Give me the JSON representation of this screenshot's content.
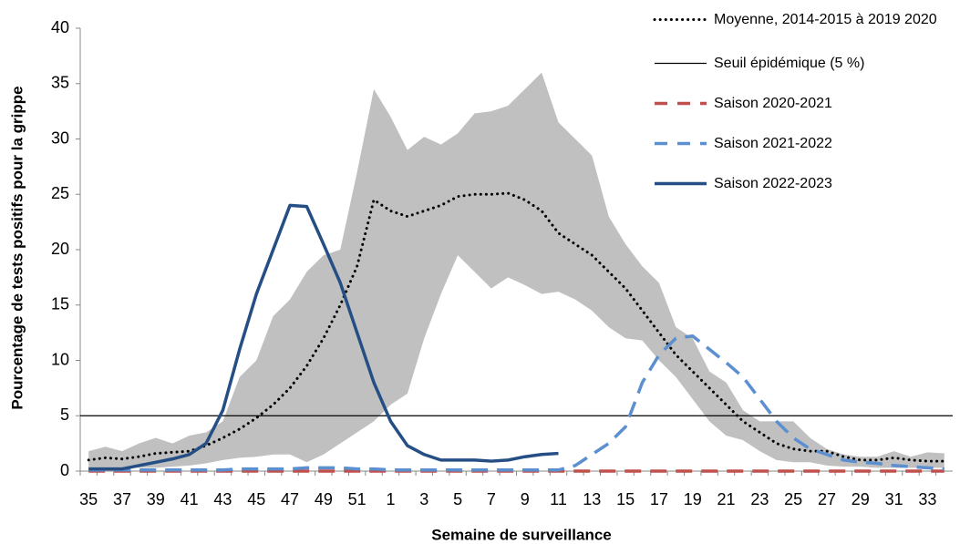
{
  "chart_data": {
    "type": "line",
    "x_label": "Semaine de surveillance",
    "y_label": "Pourcentage de tests positifs pour la grippe",
    "categories": [
      "35",
      null,
      "37",
      null,
      "39",
      null,
      "41",
      null,
      "43",
      null,
      "45",
      null,
      "47",
      null,
      "49",
      null,
      "51",
      null,
      "1",
      null,
      "3",
      null,
      "5",
      null,
      "7",
      null,
      "9",
      null,
      "11",
      null,
      "13",
      null,
      "15",
      null,
      "17",
      null,
      "19",
      null,
      "21",
      null,
      "23",
      null,
      "25",
      null,
      "27",
      null,
      "29",
      null,
      "31",
      null,
      "33",
      null
    ],
    "ylim": [
      0,
      40
    ],
    "yticks": [
      0,
      5,
      10,
      15,
      20,
      25,
      30,
      35,
      40
    ],
    "band": {
      "color": "#c0c0c0",
      "upper": [
        1.8,
        2.2,
        1.8,
        2.5,
        3,
        2.5,
        3.2,
        3.5,
        4.5,
        8.5,
        10,
        14,
        15.5,
        18,
        19.5,
        20,
        27,
        34.5,
        32,
        29,
        30.2,
        29.5,
        30.5,
        32.3,
        32.5,
        33,
        34.5,
        36,
        31.5,
        30,
        28.5,
        23,
        20.5,
        18.5,
        17,
        13,
        12,
        9,
        8,
        5.5,
        4.5,
        4.5,
        4.5,
        3,
        2,
        1.5,
        1.3,
        1.3,
        1.8,
        1.3,
        1.7,
        1.6
      ],
      "lower": [
        0.2,
        0.3,
        0.3,
        0.3,
        0.3,
        0.4,
        0.5,
        0.7,
        1,
        1.2,
        1.3,
        1.5,
        1.5,
        0.8,
        1.5,
        2.5,
        3.5,
        4.5,
        6,
        7,
        12,
        16,
        19.5,
        18,
        16.5,
        17.5,
        16.8,
        16,
        16.2,
        15.5,
        14.5,
        13,
        12,
        11.8,
        10,
        8.5,
        6.5,
        4.5,
        3.2,
        2.8,
        1.8,
        1,
        0.8,
        0.8,
        0.5,
        0.4,
        0.4,
        0.3,
        0.3,
        0.3,
        0.3,
        0.3
      ]
    },
    "threshold": {
      "name": "Seuil épidémique (5 %)",
      "value": 5,
      "color": "#000000"
    },
    "series": [
      {
        "name": "Moyenne, 2014-2015 à 2019 2020",
        "color": "#000000",
        "style": "dotted",
        "values": [
          1,
          1.2,
          1.1,
          1.3,
          1.6,
          1.7,
          1.8,
          2.3,
          3,
          3.8,
          4.8,
          6,
          7.5,
          9.5,
          12,
          15,
          18.5,
          24.5,
          23.5,
          23,
          23.5,
          24,
          24.8,
          25,
          25,
          25.1,
          24.5,
          23.5,
          21.5,
          20.5,
          19.5,
          18,
          16.5,
          14.5,
          12.5,
          10.5,
          9,
          7.5,
          6,
          4.5,
          3.5,
          2.5,
          2,
          1.8,
          1.8,
          1.3,
          1,
          1,
          1.2,
          1,
          0.9,
          0.9
        ]
      },
      {
        "name": "Saison 2020-2021",
        "color": "#c0504d",
        "style": "dashed",
        "values": [
          0,
          0,
          0,
          0,
          0,
          0,
          0,
          0,
          0,
          0,
          0,
          0,
          0,
          0,
          0,
          0,
          0,
          0,
          0,
          0,
          0,
          0,
          0,
          0,
          0,
          0,
          0,
          0,
          0,
          0,
          0,
          0,
          0,
          0,
          0,
          0,
          0,
          0,
          0,
          0,
          0,
          0,
          0,
          0,
          0,
          0,
          0,
          0,
          0,
          0,
          0,
          0
        ]
      },
      {
        "name": "Saison 2021-2022",
        "color": "#5b8fd0",
        "style": "dashed",
        "values": [
          0.1,
          0.1,
          0.1,
          0.1,
          0.1,
          0.1,
          0.1,
          0.1,
          0.1,
          0.2,
          0.2,
          0.2,
          0.2,
          0.3,
          0.3,
          0.3,
          0.2,
          0.2,
          0.1,
          0.1,
          0.1,
          0.1,
          0.1,
          0.1,
          0.1,
          0.1,
          0.1,
          0.1,
          0.1,
          0.5,
          1.5,
          2.5,
          4,
          8,
          10.5,
          12,
          12.2,
          11,
          9.8,
          8.5,
          6.5,
          4.5,
          3,
          2,
          1.5,
          1,
          0.8,
          0.7,
          0.5,
          0.4,
          0.3,
          0.2
        ]
      },
      {
        "name": "Saison 2022-2023",
        "color": "#254f84",
        "style": "solid",
        "values": [
          0.2,
          0.2,
          0.2,
          0.5,
          0.8,
          1.1,
          1.5,
          2.5,
          5.5,
          11,
          16,
          20,
          24,
          23.9,
          20.5,
          17,
          12.5,
          8,
          4.5,
          2.3,
          1.5,
          1,
          1,
          1,
          0.9,
          1,
          1.3,
          1.5,
          1.6,
          null,
          null,
          null,
          null,
          null,
          null,
          null,
          null,
          null,
          null,
          null,
          null,
          null,
          null,
          null,
          null,
          null,
          null,
          null,
          null,
          null,
          null,
          null
        ]
      }
    ]
  }
}
